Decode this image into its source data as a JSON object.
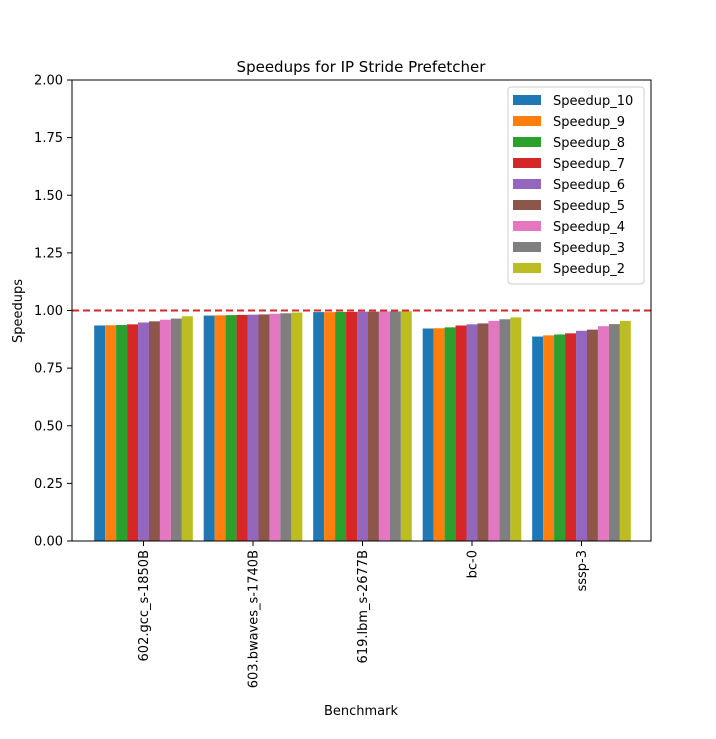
{
  "chart_data": {
    "type": "bar",
    "title": "Speedups for IP Stride Prefetcher",
    "xlabel": "Benchmark",
    "ylabel": "Speedups",
    "ylim": [
      0,
      2.0
    ],
    "yticks": [
      "0.00",
      "0.25",
      "0.50",
      "0.75",
      "1.00",
      "1.25",
      "1.50",
      "1.75",
      "2.00"
    ],
    "grid": false,
    "legend_position": "top-right",
    "reference_line": {
      "y": 1.0,
      "style": "dashed",
      "color": "#d62728"
    },
    "categories": [
      "602.gcc_s-1850B",
      "603.bwaves_s-1740B",
      "619.lbm_s-2677B",
      "bc-0",
      "sssp-3"
    ],
    "series": [
      {
        "name": "Speedup_10",
        "color": "#1f77b4",
        "values": [
          0.935,
          0.978,
          0.993,
          0.922,
          0.887
        ]
      },
      {
        "name": "Speedup_9",
        "color": "#ff7f0e",
        "values": [
          0.936,
          0.979,
          0.993,
          0.923,
          0.892
        ]
      },
      {
        "name": "Speedup_8",
        "color": "#2ca02c",
        "values": [
          0.937,
          0.98,
          0.994,
          0.927,
          0.896
        ]
      },
      {
        "name": "Speedup_7",
        "color": "#d62728",
        "values": [
          0.94,
          0.981,
          0.994,
          0.935,
          0.901
        ]
      },
      {
        "name": "Speedup_6",
        "color": "#9467bd",
        "values": [
          0.948,
          0.982,
          0.995,
          0.94,
          0.912
        ]
      },
      {
        "name": "Speedup_5",
        "color": "#8c564b",
        "values": [
          0.953,
          0.983,
          0.995,
          0.944,
          0.917
        ]
      },
      {
        "name": "Speedup_4",
        "color": "#e377c2",
        "values": [
          0.96,
          0.986,
          0.996,
          0.955,
          0.932
        ]
      },
      {
        "name": "Speedup_3",
        "color": "#7f7f7f",
        "values": [
          0.965,
          0.988,
          0.996,
          0.962,
          0.941
        ]
      },
      {
        "name": "Speedup_2",
        "color": "#bcbd22",
        "values": [
          0.975,
          0.991,
          0.997,
          0.97,
          0.955
        ]
      }
    ]
  }
}
